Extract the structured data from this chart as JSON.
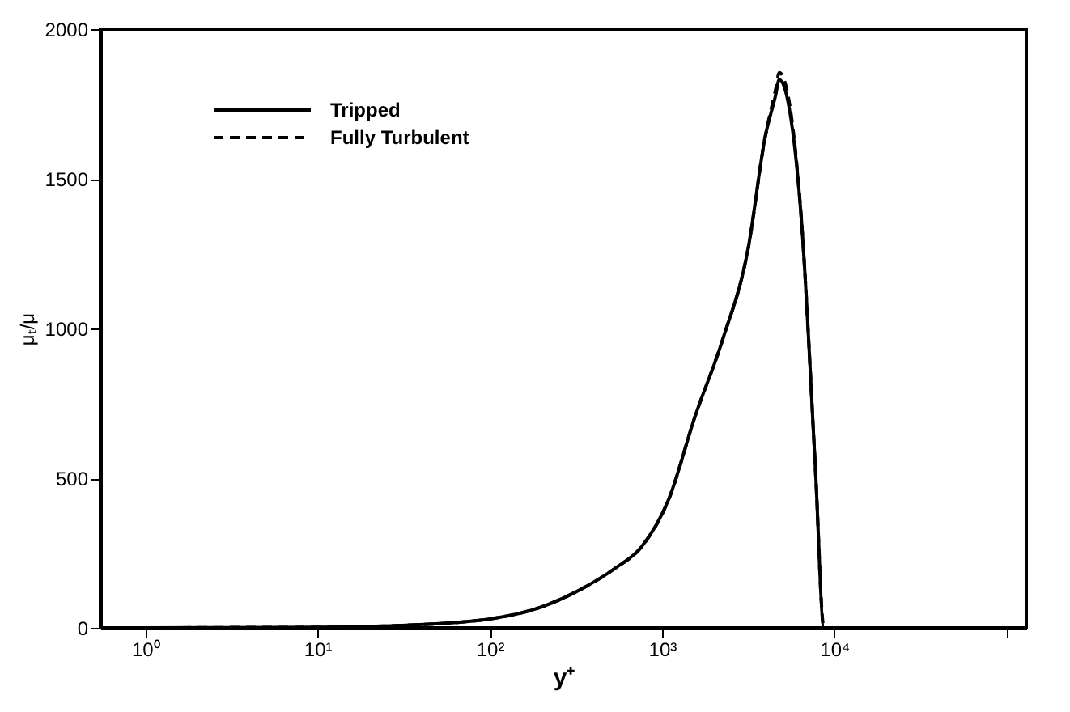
{
  "chart_data": {
    "type": "line",
    "xlabel": "y⁺",
    "ylabel": "μₜ/μ",
    "log": "x",
    "xlim": [
      0.55,
      130000
    ],
    "ylim": [
      0,
      2000
    ],
    "xticks": [
      {
        "value": 1,
        "label": "10⁰"
      },
      {
        "value": 10,
        "label": "10¹"
      },
      {
        "value": 100,
        "label": "10²"
      },
      {
        "value": 1000,
        "label": "10³"
      },
      {
        "value": 10000,
        "label": "10⁴"
      },
      {
        "value": 100000,
        "label": null
      }
    ],
    "yticks": [
      0,
      500,
      1000,
      1500,
      2000
    ],
    "grid": false,
    "legend": "top left",
    "marker": "none",
    "x": [
      0.55,
      1,
      3,
      10,
      30,
      100,
      200,
      316,
      537,
      759,
      1096,
      1549,
      2239,
      3162,
      3981,
      4571,
      4786,
      5495,
      6457,
      7762,
      8710,
      20000,
      130000
    ],
    "series": [
      {
        "name": "Tripped",
        "color": "#000000",
        "line_style": "solid",
        "values": [
          0,
          0,
          1,
          2,
          8,
          30,
          70,
          120,
          200,
          270,
          431,
          704,
          960,
          1268,
          1644,
          1781,
          1832,
          1730,
          1354,
          533,
          0,
          0,
          0
        ]
      },
      {
        "name": "Fully Turbulent",
        "color": "#000000",
        "line_style": "dashed",
        "values": [
          0,
          0,
          1,
          2,
          8,
          30,
          70,
          120,
          200,
          270,
          431,
          704,
          960,
          1268,
          1644,
          1800,
          1855,
          1750,
          1354,
          533,
          0,
          0,
          0
        ]
      }
    ]
  }
}
